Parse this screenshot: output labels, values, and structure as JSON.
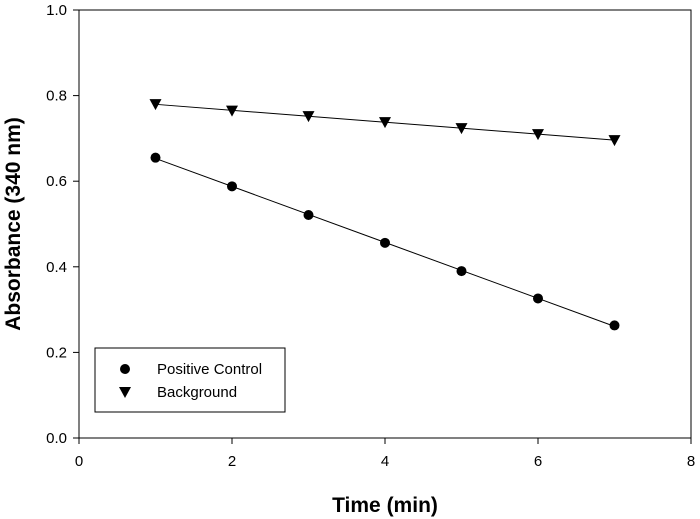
{
  "chart_data": {
    "type": "scatter",
    "xlabel": "Time (min)",
    "ylabel": "Absorbance (340 nm)",
    "xlim": [
      0,
      8
    ],
    "ylim": [
      0.0,
      1.0
    ],
    "xticks": [
      0,
      2,
      4,
      6,
      8
    ],
    "yticks": [
      0.0,
      0.2,
      0.4,
      0.6,
      0.8,
      1.0
    ],
    "x_tick_labels": [
      "0",
      "2",
      "4",
      "6",
      "8"
    ],
    "y_tick_labels": [
      "0.0",
      "0.2",
      "0.4",
      "0.6",
      "0.8",
      "1.0"
    ],
    "grid": false,
    "legend_position": "bottom-left",
    "series": [
      {
        "name": "Positive Control",
        "marker": "circle",
        "color": "#000000",
        "x": [
          1,
          2,
          3,
          4,
          5,
          6,
          7
        ],
        "y": [
          0.655,
          0.588,
          0.521,
          0.456,
          0.39,
          0.326,
          0.263
        ],
        "fit_line": true
      },
      {
        "name": "Background",
        "marker": "triangle-down",
        "color": "#000000",
        "x": [
          1,
          2,
          3,
          4,
          5,
          6,
          7
        ],
        "y": [
          0.78,
          0.765,
          0.752,
          0.738,
          0.724,
          0.71,
          0.696
        ],
        "fit_line": true
      }
    ]
  }
}
